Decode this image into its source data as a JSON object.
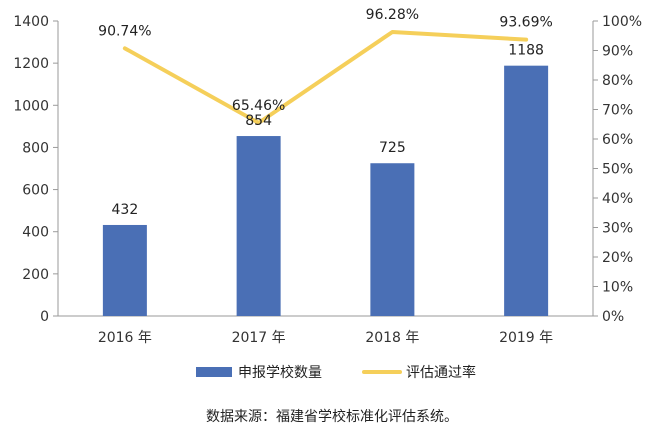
{
  "chart_data": {
    "type": "bar",
    "categories": [
      "2016 年",
      "2017 年",
      "2018 年",
      "2019 年"
    ],
    "series": [
      {
        "name": "申报学校数量",
        "type": "bar",
        "axis": "left",
        "values": [
          432,
          854,
          725,
          1188
        ],
        "labels": [
          "432",
          "854",
          "725",
          "1188"
        ],
        "color": "#4a6fb5"
      },
      {
        "name": "评估通过率",
        "type": "line",
        "axis": "right",
        "values": [
          90.74,
          65.46,
          96.28,
          93.69
        ],
        "labels": [
          "90.74%",
          "65.46%",
          "96.28%",
          "93.69%"
        ],
        "color": "#f5cf5a"
      }
    ],
    "y_left": {
      "min": 0,
      "max": 1400,
      "ticks": [
        "0",
        "200",
        "400",
        "600",
        "800",
        "1000",
        "1200",
        "1400"
      ]
    },
    "y_right": {
      "min": 0,
      "max": 100,
      "ticks": [
        "0%",
        "10%",
        "20%",
        "30%",
        "40%",
        "50%",
        "60%",
        "70%",
        "80%",
        "90%",
        "100%"
      ]
    },
    "legend_position": "bottom",
    "grid": false
  },
  "source_note": "数据来源：福建省学校标准化评估系统。"
}
